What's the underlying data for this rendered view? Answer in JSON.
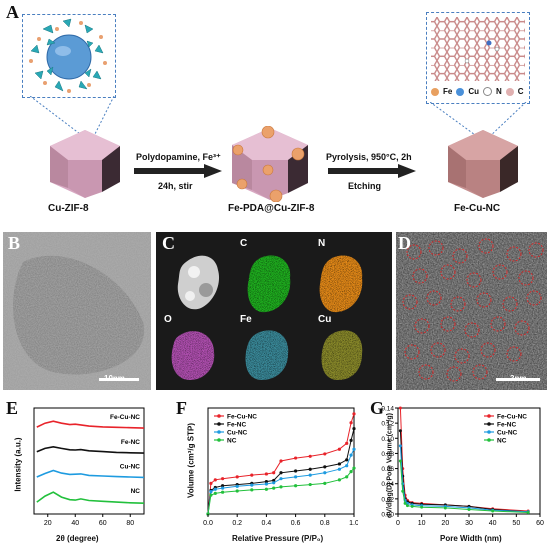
{
  "panel_labels": {
    "a": "A",
    "b": "B",
    "c": "C",
    "d": "D",
    "e": "E",
    "f": "F",
    "g": "G"
  },
  "scheme": {
    "step1_top": "Polydopamine, Fe³⁺",
    "step1_bottom": "24h, stir",
    "step2_top": "Pyrolysis, 950°C, 2h",
    "step2_bottom": "Etching",
    "material1": "Cu-ZIF-8",
    "material2": "Fe-PDA@Cu-ZIF-8",
    "material3": "Fe-Cu-NC",
    "legend": [
      {
        "symbol": "Fe",
        "color": "#e8a060"
      },
      {
        "symbol": "Cu",
        "color": "#4a90d9"
      },
      {
        "symbol": "N",
        "color": "#ffffff"
      },
      {
        "symbol": "C",
        "color": "#e0b0b0"
      }
    ]
  },
  "tem": {
    "scale_b": "10nm",
    "scale_d": "3nm"
  },
  "eds": {
    "elements": [
      "C",
      "N",
      "O",
      "Fe",
      "Cu"
    ]
  },
  "chart_data": [
    {
      "type": "line",
      "panel": "E",
      "xlabel": "2θ (degree)",
      "ylabel": "Intensity (a.u.)",
      "xlim": [
        10,
        90
      ],
      "xticks": [
        20,
        40,
        60,
        80
      ],
      "series": [
        {
          "name": "Fe-Cu-NC",
          "color": "#e8232a",
          "offset": 3,
          "x": [
            12,
            18,
            24,
            30,
            36,
            40,
            44,
            50,
            60,
            70,
            80,
            90
          ],
          "y": [
            0.25,
            0.45,
            0.55,
            0.45,
            0.38,
            0.4,
            0.36,
            0.3,
            0.26,
            0.24,
            0.22,
            0.2
          ]
        },
        {
          "name": "Fe-NC",
          "color": "#111111",
          "offset": 2,
          "x": [
            12,
            18,
            24,
            30,
            36,
            40,
            44,
            50,
            60,
            70,
            80,
            90
          ],
          "y": [
            0.25,
            0.42,
            0.5,
            0.42,
            0.35,
            0.34,
            0.36,
            0.3,
            0.26,
            0.22,
            0.2,
            0.18
          ]
        },
        {
          "name": "Cu-NC",
          "color": "#1e9be0",
          "offset": 1,
          "x": [
            12,
            18,
            24,
            30,
            36,
            40,
            44,
            50,
            60,
            70,
            80,
            90
          ],
          "y": [
            0.22,
            0.4,
            0.55,
            0.42,
            0.35,
            0.36,
            0.38,
            0.3,
            0.27,
            0.24,
            0.22,
            0.2
          ]
        },
        {
          "name": "NC",
          "color": "#22c03c",
          "offset": 0,
          "x": [
            12,
            18,
            24,
            30,
            36,
            40,
            44,
            50,
            60,
            70,
            80,
            90
          ],
          "y": [
            0.2,
            0.5,
            0.7,
            0.45,
            0.32,
            0.3,
            0.36,
            0.28,
            0.24,
            0.2,
            0.16,
            0.14
          ]
        }
      ]
    },
    {
      "type": "line",
      "panel": "F",
      "xlabel": "Relative Pressure (P/P₀)",
      "ylabel": "Volume (cm³/g STP)",
      "xlim": [
        0,
        1
      ],
      "xticks": [
        0.0,
        0.2,
        0.4,
        0.6,
        0.8,
        1.0
      ],
      "series": [
        {
          "name": "Fe-Cu-NC",
          "color": "#e8232a",
          "x": [
            0.0,
            0.02,
            0.05,
            0.1,
            0.2,
            0.3,
            0.4,
            0.45,
            0.5,
            0.6,
            0.7,
            0.8,
            0.9,
            0.95,
            0.98,
            1.0
          ],
          "y": [
            0.0,
            0.52,
            0.58,
            0.6,
            0.63,
            0.66,
            0.68,
            0.7,
            0.9,
            0.95,
            0.98,
            1.02,
            1.1,
            1.2,
            1.55,
            1.7
          ]
        },
        {
          "name": "Fe-NC",
          "color": "#111111",
          "x": [
            0.0,
            0.02,
            0.05,
            0.1,
            0.2,
            0.3,
            0.4,
            0.45,
            0.5,
            0.6,
            0.7,
            0.8,
            0.9,
            0.95,
            0.98,
            1.0
          ],
          "y": [
            0.0,
            0.4,
            0.45,
            0.48,
            0.5,
            0.52,
            0.55,
            0.57,
            0.7,
            0.73,
            0.76,
            0.8,
            0.85,
            0.92,
            1.25,
            1.45
          ]
        },
        {
          "name": "Cu-NC",
          "color": "#1e9be0",
          "x": [
            0.0,
            0.02,
            0.05,
            0.1,
            0.2,
            0.3,
            0.4,
            0.45,
            0.5,
            0.6,
            0.7,
            0.8,
            0.9,
            0.95,
            0.98,
            1.0
          ],
          "y": [
            0.0,
            0.38,
            0.42,
            0.44,
            0.47,
            0.49,
            0.51,
            0.53,
            0.6,
            0.63,
            0.66,
            0.7,
            0.76,
            0.82,
            1.0,
            1.1
          ]
        },
        {
          "name": "NC",
          "color": "#22c03c",
          "x": [
            0.0,
            0.02,
            0.05,
            0.1,
            0.2,
            0.3,
            0.4,
            0.45,
            0.5,
            0.6,
            0.7,
            0.8,
            0.9,
            0.95,
            0.98,
            1.0
          ],
          "y": [
            0.0,
            0.32,
            0.35,
            0.37,
            0.39,
            0.41,
            0.42,
            0.44,
            0.46,
            0.48,
            0.5,
            0.52,
            0.58,
            0.63,
            0.72,
            0.78
          ]
        }
      ]
    },
    {
      "type": "line",
      "panel": "G",
      "xlabel": "Pore Width (nm)",
      "ylabel": "dV/dlog(D) Pore Volume (cm³/g)",
      "xlim": [
        0,
        60
      ],
      "ylim": [
        0,
        0.14
      ],
      "xticks": [
        0,
        10,
        20,
        30,
        40,
        50,
        60
      ],
      "yticks": [
        0.0,
        0.02,
        0.04,
        0.06,
        0.08,
        0.1,
        0.12,
        0.14
      ],
      "series": [
        {
          "name": "Fe-Cu-NC",
          "color": "#e8232a",
          "x": [
            1,
            2,
            3,
            4,
            6,
            10,
            20,
            30,
            40,
            55
          ],
          "y": [
            0.14,
            0.06,
            0.025,
            0.018,
            0.015,
            0.014,
            0.012,
            0.01,
            0.007,
            0.004
          ]
        },
        {
          "name": "Fe-NC",
          "color": "#111111",
          "x": [
            1,
            2,
            3,
            4,
            6,
            10,
            20,
            30,
            40,
            55
          ],
          "y": [
            0.11,
            0.05,
            0.02,
            0.016,
            0.014,
            0.013,
            0.012,
            0.01,
            0.006,
            0.003
          ]
        },
        {
          "name": "Cu-NC",
          "color": "#1e9be0",
          "x": [
            1,
            2,
            3,
            4,
            6,
            10,
            20,
            30,
            40,
            55
          ],
          "y": [
            0.09,
            0.04,
            0.018,
            0.014,
            0.012,
            0.011,
            0.01,
            0.008,
            0.005,
            0.003
          ]
        },
        {
          "name": "NC",
          "color": "#22c03c",
          "x": [
            1,
            2,
            3,
            4,
            6,
            10,
            20,
            30,
            40,
            55
          ],
          "y": [
            0.07,
            0.03,
            0.014,
            0.011,
            0.01,
            0.009,
            0.008,
            0.006,
            0.004,
            0.002
          ]
        }
      ]
    }
  ]
}
